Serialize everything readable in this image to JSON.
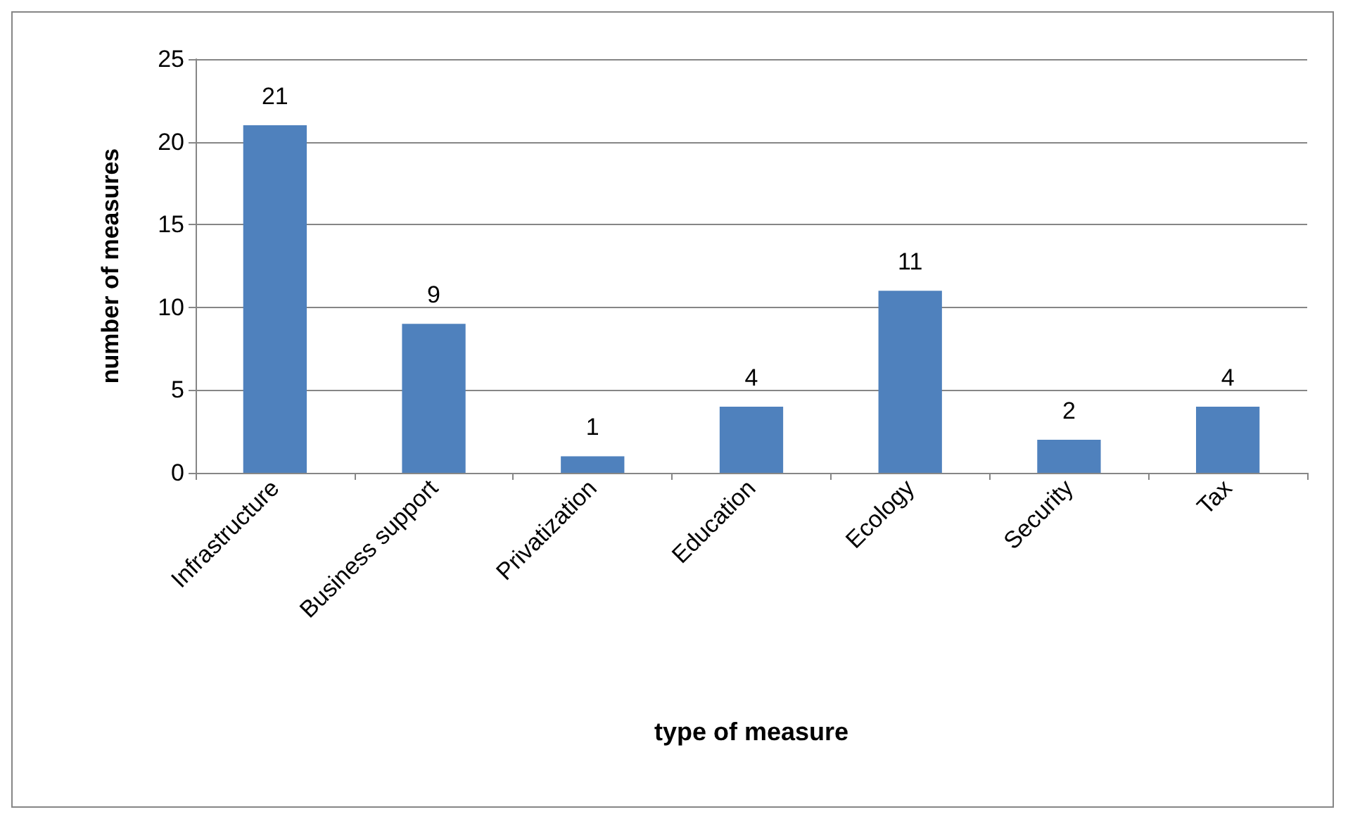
{
  "chart_data": {
    "type": "bar",
    "xlabel": "type of measure",
    "ylabel": "number of measures",
    "categories": [
      "Infrastructure",
      "Business support",
      "Privatization",
      "Education",
      "Ecology",
      "Security",
      "Tax"
    ],
    "values": [
      21,
      9,
      1,
      4,
      11,
      2,
      4
    ],
    "color": "#4f81bd",
    "data_labels": true,
    "ylim": [
      0,
      25
    ],
    "yticks": [
      0,
      5,
      10,
      15,
      20,
      25
    ],
    "grid": "y"
  }
}
